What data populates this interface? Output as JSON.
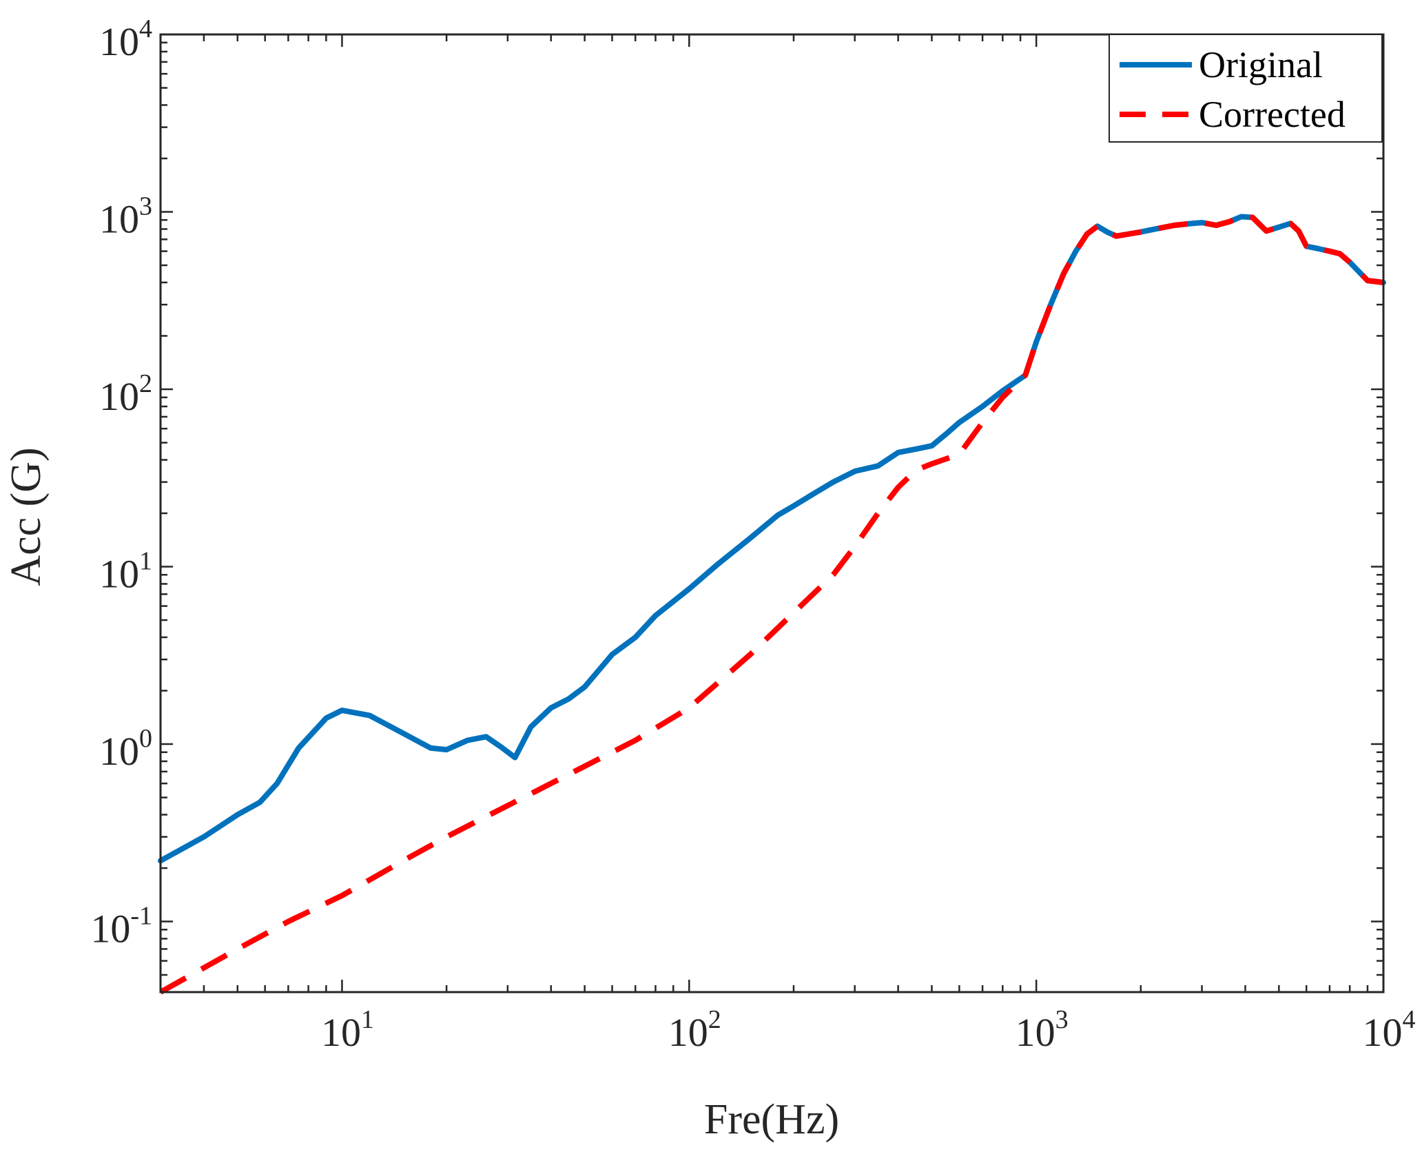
{
  "chart_data": {
    "type": "line",
    "xscale": "log",
    "yscale": "log",
    "xlabel": "Fre(Hz)",
    "ylabel": "Acc (G)",
    "xlim": [
      3,
      10000
    ],
    "ylim": [
      0.04,
      10000
    ],
    "grid": false,
    "legend_position": "top-right",
    "x_ticks": [
      {
        "value": 10,
        "base": "10",
        "exp": "1"
      },
      {
        "value": 100,
        "base": "10",
        "exp": "2"
      },
      {
        "value": 1000,
        "base": "10",
        "exp": "3"
      },
      {
        "value": 10000,
        "base": "10",
        "exp": "4"
      }
    ],
    "y_ticks": [
      {
        "value": 0.1,
        "base": "10",
        "exp": "-1"
      },
      {
        "value": 1,
        "base": "10",
        "exp": "0"
      },
      {
        "value": 10,
        "base": "10",
        "exp": "1"
      },
      {
        "value": 100,
        "base": "10",
        "exp": "2"
      },
      {
        "value": 1000,
        "base": "10",
        "exp": "3"
      },
      {
        "value": 10000,
        "base": "10",
        "exp": "4"
      }
    ],
    "series": [
      {
        "name": "Original",
        "color": "#0072BD",
        "style": "solid",
        "x": [
          3,
          4,
          5,
          5.8,
          6.5,
          7.5,
          9,
          10,
          12,
          15,
          18,
          20,
          23,
          26,
          29,
          31.5,
          35,
          40,
          45,
          50,
          60,
          70,
          80,
          100,
          120,
          150,
          180,
          200,
          230,
          260,
          300,
          350,
          400,
          450,
          500,
          550,
          600,
          700,
          800,
          930,
          1000,
          1100,
          1200,
          1300,
          1400,
          1500,
          1600,
          1700,
          2000,
          2200,
          2500,
          2800,
          3000,
          3300,
          3600,
          3900,
          4200,
          4600,
          5000,
          5400,
          5700,
          6000,
          6500,
          7000,
          7500,
          8000,
          8500,
          9000,
          10000
        ],
        "y": [
          0.22,
          0.3,
          0.4,
          0.47,
          0.6,
          0.95,
          1.4,
          1.55,
          1.45,
          1.15,
          0.95,
          0.93,
          1.05,
          1.1,
          0.95,
          0.84,
          1.25,
          1.6,
          1.8,
          2.1,
          3.2,
          4.0,
          5.3,
          7.5,
          10.2,
          14.5,
          19.5,
          22,
          26,
          30,
          34.5,
          37,
          44,
          46,
          48,
          56,
          65,
          80,
          98,
          120,
          185,
          300,
          450,
          600,
          750,
          830,
          770,
          730,
          770,
          800,
          840,
          860,
          870,
          840,
          880,
          940,
          930,
          780,
          820,
          860,
          780,
          640,
          620,
          600,
          580,
          520,
          460,
          410,
          400
        ]
      },
      {
        "name": "Corrected",
        "color": "#FF0000",
        "style": "dashed",
        "x": [
          3,
          5,
          7,
          10,
          15,
          20,
          30,
          50,
          70,
          100,
          150,
          200,
          260,
          300,
          350,
          400,
          450,
          500,
          600,
          700,
          800,
          930,
          1000,
          1100,
          1200,
          1300,
          1400,
          1500,
          1600,
          1700,
          2000,
          2200,
          2500,
          2800,
          3000,
          3300,
          3600,
          3900,
          4200,
          4600,
          5000,
          5400,
          5700,
          6000,
          6500,
          7000,
          7500,
          8000,
          8500,
          9000,
          10000
        ],
        "y": [
          0.04,
          0.07,
          0.1,
          0.14,
          0.22,
          0.3,
          0.45,
          0.75,
          1.05,
          1.6,
          3.2,
          5.5,
          9.0,
          13.0,
          20,
          28,
          35,
          38,
          43,
          65,
          90,
          120,
          185,
          300,
          450,
          600,
          750,
          830,
          770,
          730,
          770,
          800,
          840,
          860,
          870,
          840,
          880,
          940,
          930,
          780,
          820,
          860,
          780,
          640,
          620,
          600,
          580,
          520,
          460,
          410,
          400
        ]
      }
    ]
  }
}
